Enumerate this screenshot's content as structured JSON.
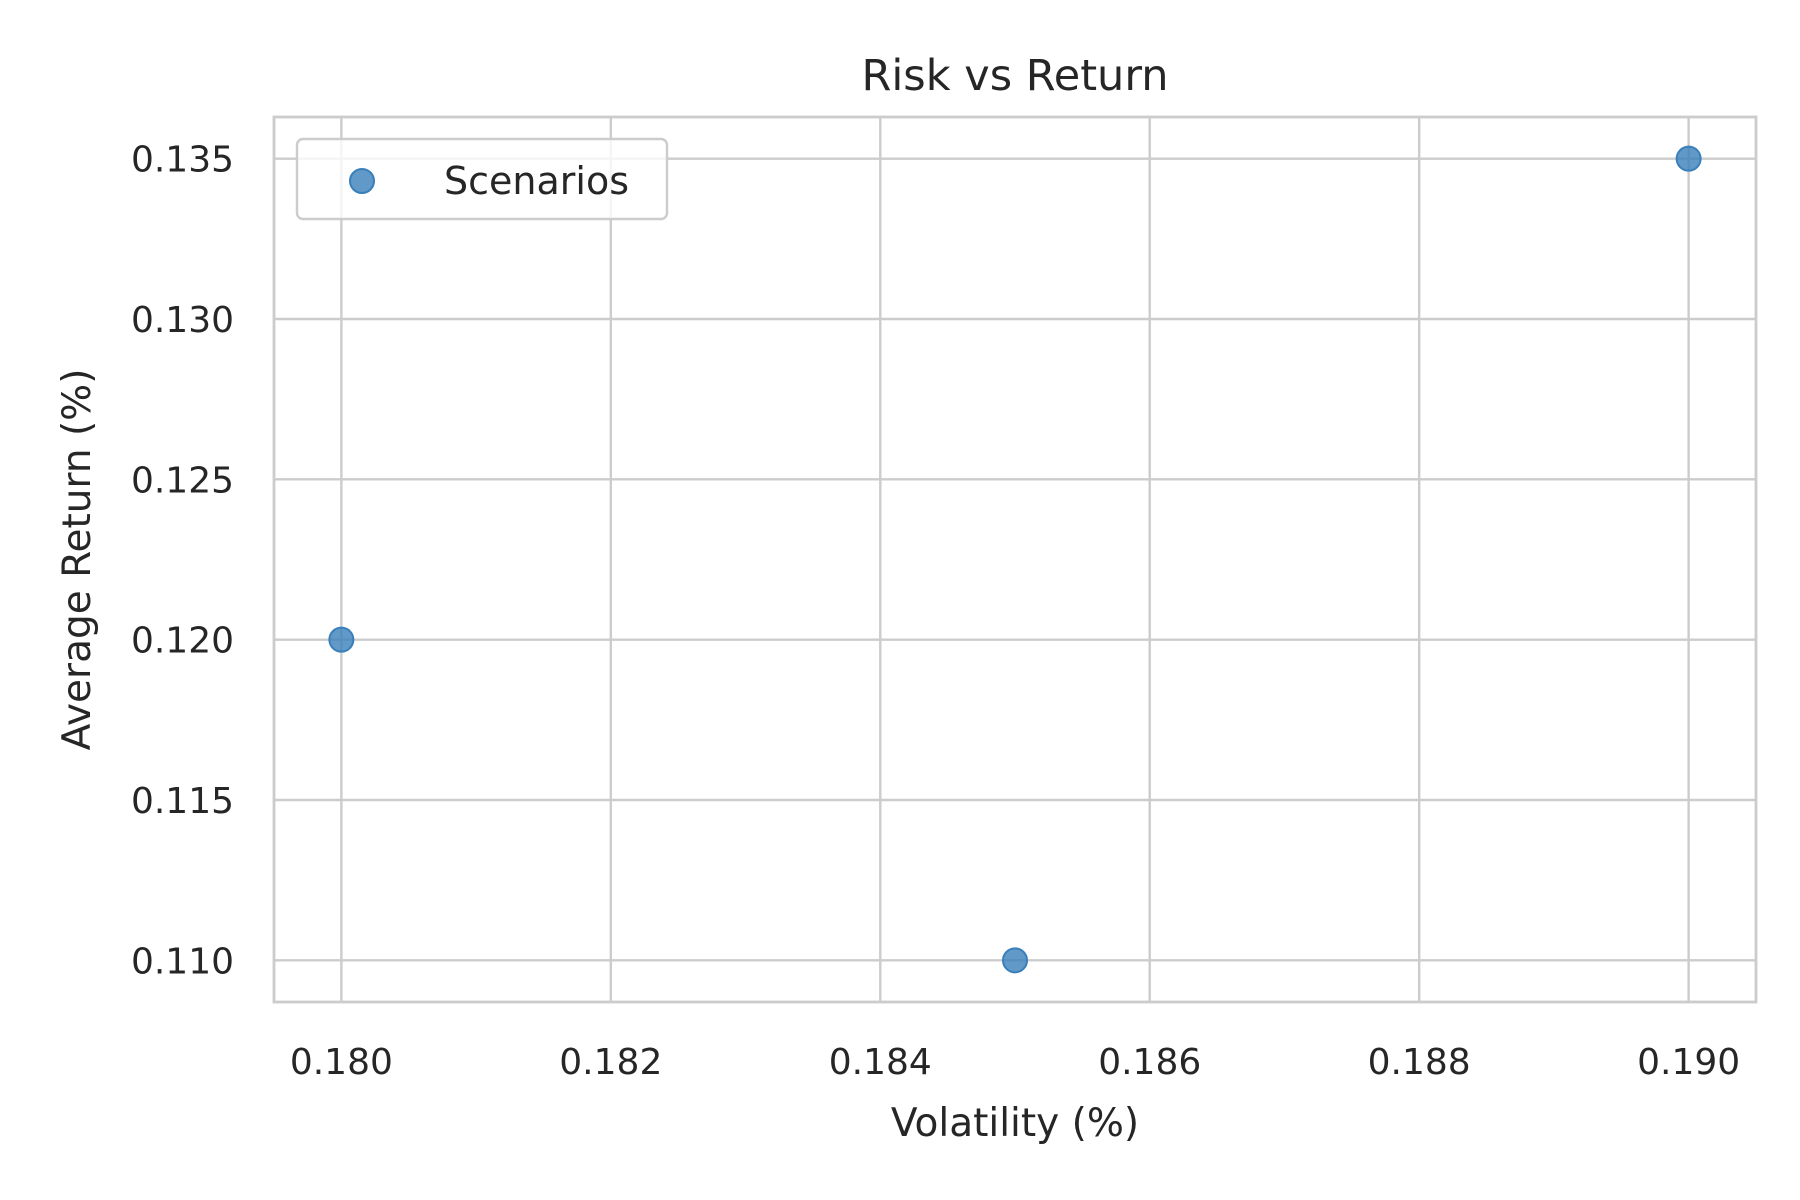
{
  "chart_data": {
    "type": "scatter",
    "title": "Risk vs Return",
    "xlabel": "Volatility (%)",
    "ylabel": "Average Return (%)",
    "xlim": [
      0.1795,
      0.1905
    ],
    "ylim": [
      0.1087,
      0.1363
    ],
    "xticks": [
      0.18,
      0.182,
      0.184,
      0.186,
      0.188,
      0.19
    ],
    "yticks": [
      0.11,
      0.115,
      0.12,
      0.125,
      0.13,
      0.135
    ],
    "x_tick_labels": [
      "0.180",
      "0.182",
      "0.184",
      "0.186",
      "0.188",
      "0.190"
    ],
    "y_tick_labels": [
      "0.110",
      "0.115",
      "0.120",
      "0.125",
      "0.130",
      "0.135"
    ],
    "grid": true,
    "legend_position": "top-left",
    "series": [
      {
        "name": "Scenarios",
        "color": "#3a7fba",
        "points": [
          {
            "x": 0.18,
            "y": 0.12
          },
          {
            "x": 0.185,
            "y": 0.11
          },
          {
            "x": 0.19,
            "y": 0.135
          }
        ]
      }
    ]
  }
}
